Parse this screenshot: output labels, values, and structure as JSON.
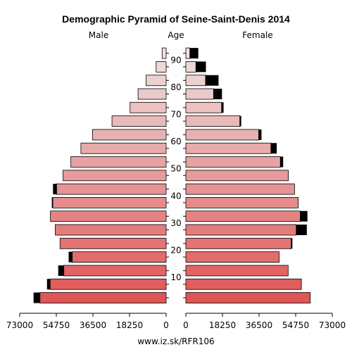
{
  "chart_data": {
    "type": "bar",
    "title": "Demographic Pyramid of Seine-Saint-Denis 2014",
    "left_label": "Male",
    "center_label": "Age",
    "right_label": "Female",
    "footer": "www.iz.sk/RFR106",
    "age_ticks": [
      "10",
      "20",
      "30",
      "40",
      "50",
      "60",
      "70",
      "80",
      "90"
    ],
    "value_ticks_left": [
      "73000",
      "54750",
      "36500",
      "18250",
      "0"
    ],
    "value_ticks_right": [
      "0",
      "18250",
      "36500",
      "54750",
      "73000"
    ],
    "xlim": [
      0,
      73000
    ],
    "age_groups": [
      "0-4",
      "5-9",
      "10-14",
      "15-19",
      "20-24",
      "25-29",
      "30-34",
      "35-39",
      "40-44",
      "45-49",
      "50-54",
      "55-59",
      "60-64",
      "65-69",
      "70-74",
      "75-79",
      "80-84",
      "85-89",
      "90+"
    ],
    "series": [
      {
        "name": "Male",
        "base_values": [
          62900,
          57800,
          51000,
          46800,
          52900,
          55300,
          57700,
          56500,
          54600,
          51400,
          47500,
          42500,
          36700,
          27000,
          18000,
          14000,
          10000,
          5000,
          2000
        ],
        "excess_values": [
          3200,
          1600,
          2800,
          1800,
          0,
          0,
          0,
          500,
          1800,
          0,
          0,
          0,
          0,
          0,
          0,
          0,
          0,
          0,
          0
        ]
      },
      {
        "name": "Female",
        "base_values": [
          62000,
          57600,
          51000,
          46500,
          52500,
          55000,
          57000,
          56000,
          54200,
          51100,
          47100,
          42400,
          36300,
          26900,
          17800,
          13800,
          9800,
          5000,
          2000
        ],
        "excess_values": [
          0,
          0,
          0,
          0,
          600,
          5300,
          3600,
          0,
          0,
          0,
          1400,
          2900,
          1400,
          700,
          1000,
          4200,
          6500,
          5000,
          4200
        ]
      }
    ],
    "colors": {
      "excess": "#000000",
      "bottom_fill": "#e05555",
      "top_fill": "#eee0e0",
      "outline": "#000000"
    }
  }
}
